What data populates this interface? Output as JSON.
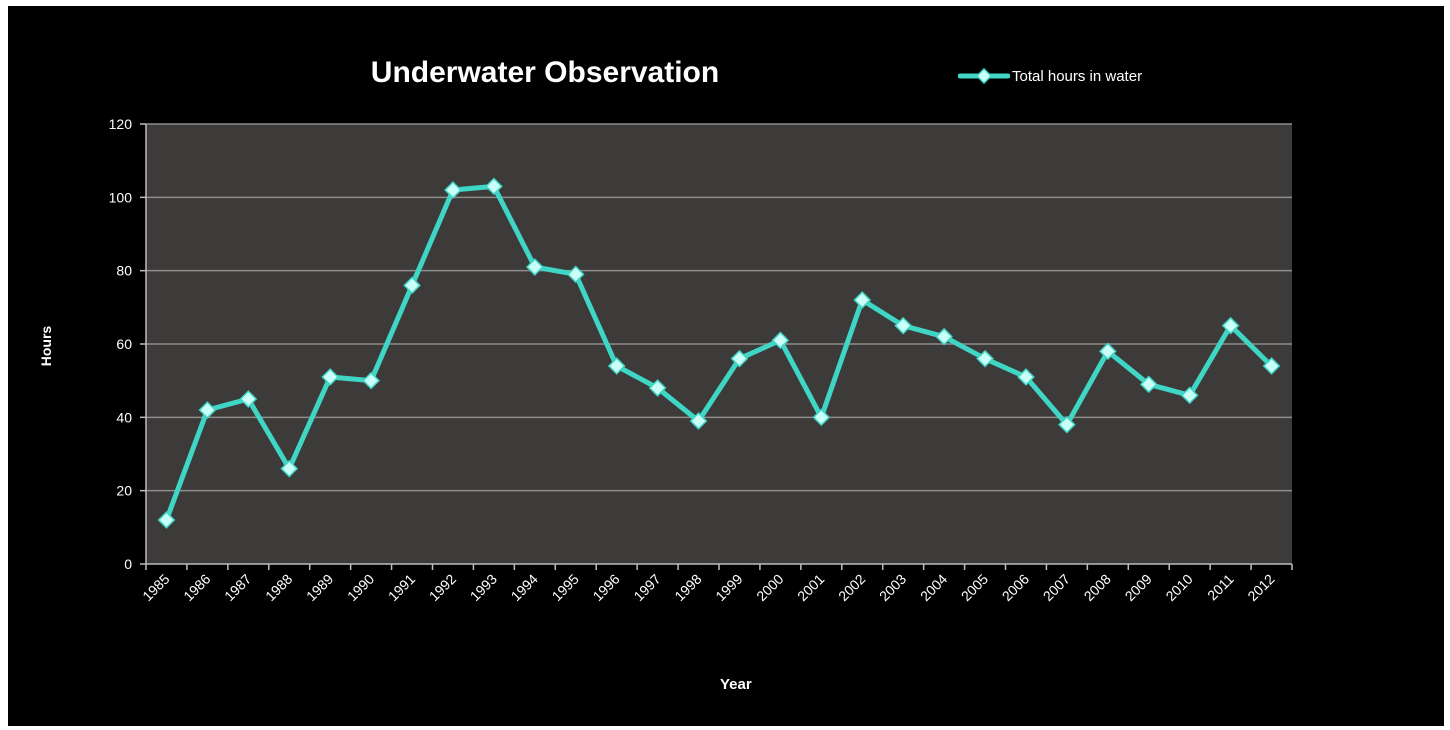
{
  "chart_data": {
    "type": "line",
    "title": "Underwater Observation",
    "xlabel": "Year",
    "ylabel": "Hours",
    "categories": [
      "1985",
      "1986",
      "1987",
      "1988",
      "1989",
      "1990",
      "1991",
      "1992",
      "1993",
      "1994",
      "1995",
      "1996",
      "1997",
      "1998",
      "1999",
      "2000",
      "2001",
      "2002",
      "2003",
      "2004",
      "2005",
      "2006",
      "2007",
      "2008",
      "2009",
      "2010",
      "2011",
      "2012"
    ],
    "series": [
      {
        "name": "Total hours in water",
        "values": [
          12,
          42,
          45,
          26,
          51,
          50,
          76,
          102,
          103,
          81,
          79,
          54,
          48,
          39,
          56,
          61,
          40,
          72,
          65,
          62,
          56,
          51,
          38,
          58,
          49,
          46,
          65,
          54
        ]
      }
    ],
    "ylim": [
      0,
      120
    ],
    "yticks": [
      0,
      20,
      40,
      60,
      80,
      100,
      120
    ],
    "grid": true,
    "legend_position": "top-right",
    "colors": {
      "background": "#000000",
      "plot_area": "#3c3b3a",
      "gridline": "#8e8d8b",
      "series_line": "#3fd6c6",
      "marker_fill": "#c9fff6",
      "text": "#ffffff"
    }
  }
}
